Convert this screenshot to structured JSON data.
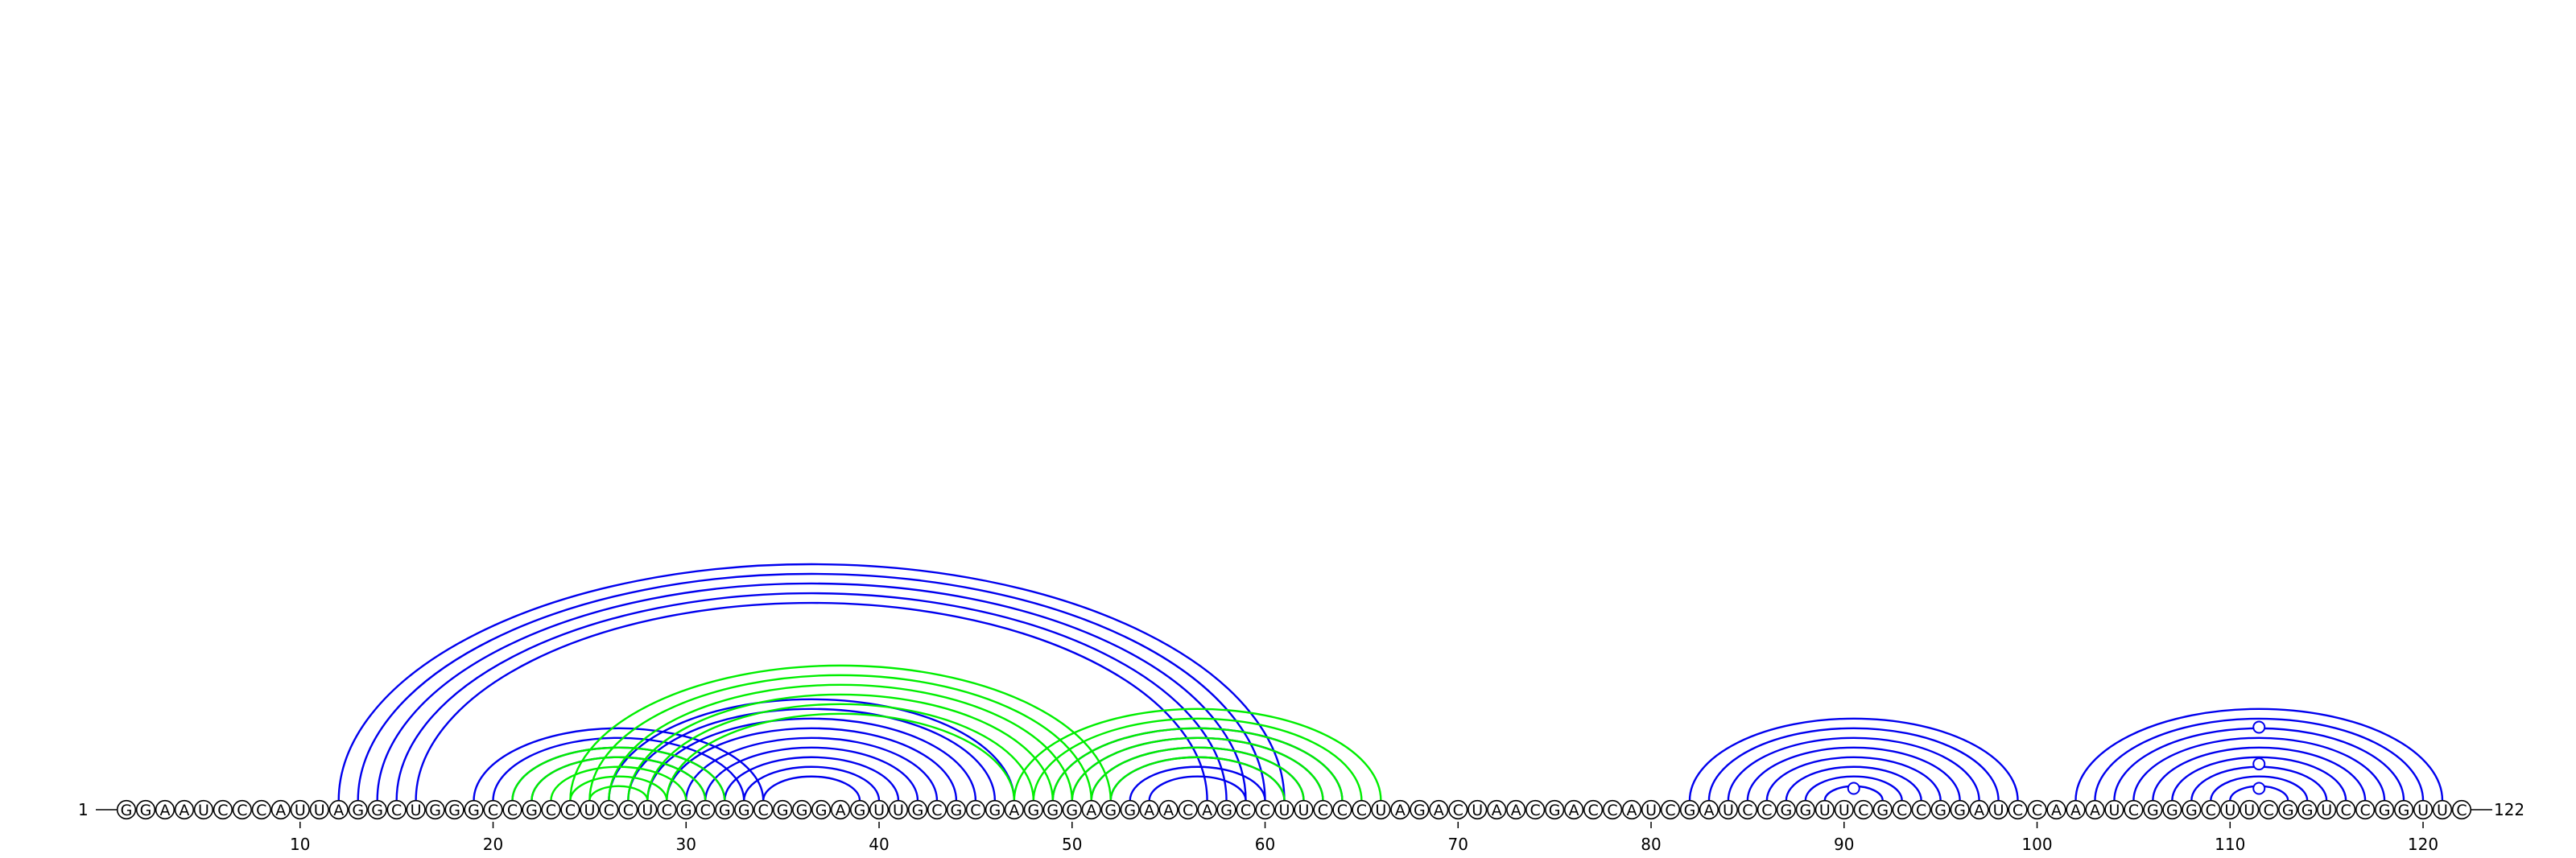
{
  "sequence": "GGAAUCCCAUUAGGCUGGGCCGCCUCCUCGCGGCGGGAGUUGCGCGAGGGAGGAACAGCCUUCCCUAGACUAACGACCAUCGAUCCGGUUCGCCGGAUCCAAAUCGGGCUUCGGUCCGGUUC",
  "start_label": "1",
  "end_label": "122",
  "tick_positions": [
    10,
    20,
    30,
    40,
    50,
    60,
    70,
    80,
    90,
    100,
    110,
    120
  ],
  "colors": {
    "primary_arcs": "#0000ee",
    "alternate_arcs": "#00ee00",
    "nucleotide_outline": "#000000"
  },
  "helices": [
    {
      "color": "primary",
      "i": 12,
      "j": 61,
      "length": 5
    },
    {
      "color": "primary",
      "i": 19,
      "j": 34,
      "length": 4
    },
    {
      "color": "primary",
      "i": 26,
      "j": 47,
      "length": 9
    },
    {
      "color": "primary",
      "i": 49,
      "j": 64,
      "length": 6
    },
    {
      "color": "primary",
      "i": 82,
      "j": 99,
      "length": 8
    },
    {
      "color": "primary",
      "i": 102,
      "j": 121,
      "length": 9
    },
    {
      "color": "alternate",
      "i": 21,
      "j": 32,
      "length": 5
    },
    {
      "color": "alternate",
      "i": 24,
      "j": 52,
      "length": 6
    },
    {
      "color": "alternate",
      "i": 47,
      "j": 66,
      "length": 6
    }
  ],
  "pseudoknot_markers": [
    {
      "position": 90.5,
      "level": 1
    },
    {
      "position": 111.5,
      "level": 1
    },
    {
      "position": 111.5,
      "level": 3
    },
    {
      "position": 111.5,
      "level": 6
    }
  ]
}
